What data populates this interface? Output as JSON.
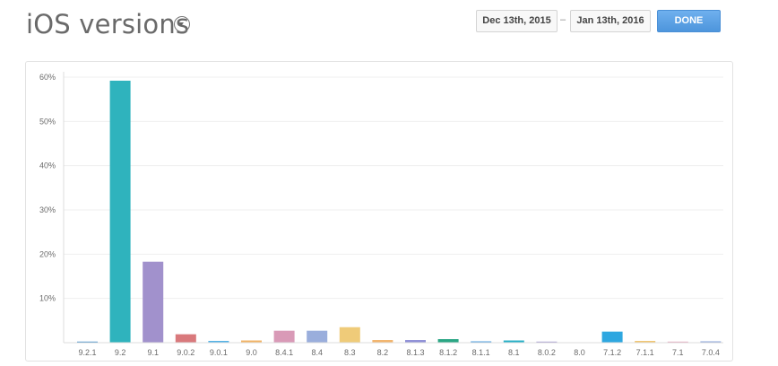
{
  "header": {
    "title": "iOS versions",
    "date_start": "Dec 13th, 2015",
    "date_separator": "–",
    "date_end": "Jan 13th, 2016",
    "done_label": "DONE",
    "done_color": "#5aa0e4"
  },
  "chart_data": {
    "type": "bar",
    "title": "iOS versions",
    "xlabel": "",
    "ylabel": "",
    "ylim": [
      0,
      60
    ],
    "yticks": [
      {
        "value": 10,
        "label": "10%"
      },
      {
        "value": 20,
        "label": "20%"
      },
      {
        "value": 30,
        "label": "30%"
      },
      {
        "value": 40,
        "label": "40%"
      },
      {
        "value": 50,
        "label": "50%"
      },
      {
        "value": 60,
        "label": "60%"
      }
    ],
    "grid": true,
    "categories": [
      "9.2.1",
      "9.2",
      "9.1",
      "9.0.2",
      "9.0.1",
      "9.0",
      "8.4.1",
      "8.4",
      "8.3",
      "8.2",
      "8.1.3",
      "8.1.2",
      "8.1.1",
      "8.1",
      "8.0.2",
      "8.0",
      "7.1.2",
      "7.1.1",
      "7.1",
      "7.0.4"
    ],
    "values": [
      0.1,
      59.2,
      18.3,
      1.9,
      0.4,
      0.5,
      2.7,
      2.7,
      3.5,
      0.6,
      0.6,
      0.8,
      0.3,
      0.5,
      0.1,
      0.0,
      2.5,
      0.4,
      0.2,
      0.3
    ],
    "colors": [
      "#2f86c9",
      "#2fb3bd",
      "#a191cc",
      "#d9797c",
      "#4fb0e6",
      "#f2b365",
      "#d99ab7",
      "#9aaedc",
      "#efcb79",
      "#f2b36b",
      "#8e8fd6",
      "#2aa684",
      "#4fa0e0",
      "#27b0c7",
      "#9f94cf",
      "#cccccc",
      "#2ea7e0",
      "#f1c46e",
      "#e7a5bd",
      "#8aa3da"
    ]
  }
}
